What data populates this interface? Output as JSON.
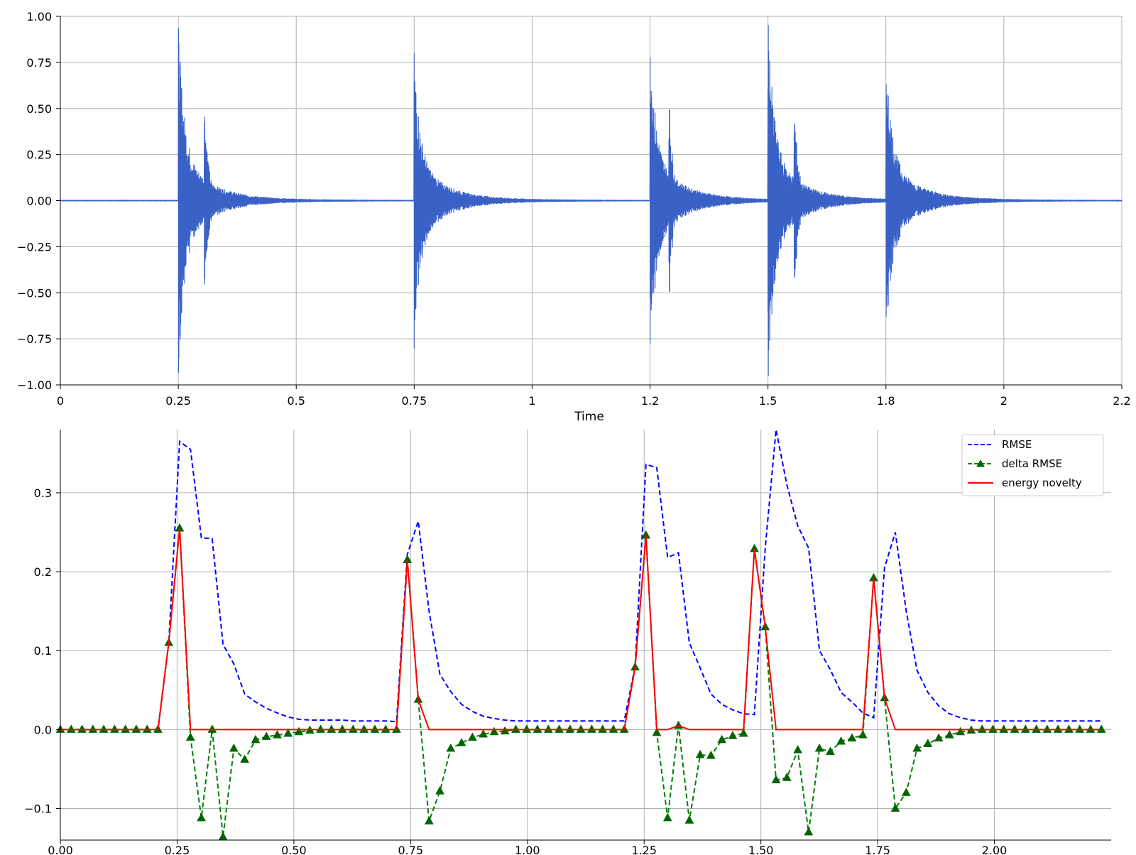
{
  "chart_data": [
    {
      "type": "line",
      "subtype": "waveform",
      "title": "",
      "xlabel": "Time",
      "ylabel": "",
      "xlim": [
        0,
        2.25
      ],
      "ylim": [
        -1.0,
        1.0
      ],
      "grid": true,
      "x_ticks": [
        0,
        0.25,
        0.5,
        0.75,
        1.0,
        1.25,
        1.5,
        1.75,
        2.0,
        2.25
      ],
      "x_tick_labels": [
        "0",
        "0.25",
        "0.5",
        "0.75",
        "1",
        "1.2",
        "1.5",
        "1.8",
        "2",
        "2.2"
      ],
      "y_ticks": [
        -1.0,
        -0.75,
        -0.5,
        -0.25,
        0.0,
        0.25,
        0.5,
        0.75,
        1.0
      ],
      "y_tick_labels": [
        "−1.00",
        "−0.75",
        "−0.50",
        "−0.25",
        "0.00",
        "0.25",
        "0.50",
        "0.75",
        "1.00"
      ],
      "color": "#3a62c6",
      "series": [
        {
          "onsets": [
            0.25,
            0.75,
            1.25,
            1.5,
            1.75
          ],
          "peak_amplitude": [
            0.97,
            0.81,
            0.9,
            1.0,
            0.82
          ],
          "second_burst": [
            {
              "t": 0.305,
              "amp": 0.58
            },
            {
              "t": 1.29,
              "amp": 0.6
            },
            {
              "t": 1.555,
              "amp": 0.6
            }
          ],
          "decay_tail_to": 2.25
        }
      ]
    },
    {
      "type": "line",
      "title": "",
      "xlabel": "",
      "ylabel": "",
      "xlim": [
        0,
        2.25
      ],
      "ylim": [
        -0.14,
        0.38
      ],
      "grid": true,
      "legend": "top-right",
      "x_ticks": [
        0,
        0.25,
        0.5,
        0.75,
        1.0,
        1.25,
        1.5,
        1.75,
        2.0
      ],
      "x_tick_labels": [
        "0.00",
        "0.25",
        "0.50",
        "0.75",
        "1.00",
        "1.25",
        "1.50",
        "1.75",
        "2.00"
      ],
      "y_ticks": [
        -0.1,
        0.0,
        0.1,
        0.2,
        0.3
      ],
      "y_tick_labels": [
        "−0.1",
        "0.0",
        "0.1",
        "0.2",
        "0.3"
      ],
      "series": [
        {
          "name": "RMSE",
          "color": "#0000ff",
          "style": "dashed",
          "x": [
            0,
            0.0232,
            0.0464,
            0.0697,
            0.0929,
            0.1161,
            0.1393,
            0.1625,
            0.1858,
            0.209,
            0.2322,
            0.2554,
            0.2786,
            0.3019,
            0.3251,
            0.3483,
            0.3715,
            0.3947,
            0.418,
            0.4412,
            0.4644,
            0.4876,
            0.5108,
            0.5341,
            0.5573,
            0.5805,
            0.6037,
            0.6269,
            0.6502,
            0.6734,
            0.6966,
            0.7198,
            0.743,
            0.7663,
            0.7895,
            0.8127,
            0.8359,
            0.8591,
            0.8824,
            0.9056,
            0.9288,
            0.952,
            0.9752,
            0.9985,
            1.0217,
            1.0449,
            1.0681,
            1.0913,
            1.1146,
            1.1378,
            1.161,
            1.1842,
            1.2074,
            1.2307,
            1.2539,
            1.2771,
            1.3003,
            1.3235,
            1.3468,
            1.37,
            1.3932,
            1.4164,
            1.4396,
            1.4629,
            1.4861,
            1.5093,
            1.5325,
            1.5557,
            1.579,
            1.6022,
            1.6254,
            1.6486,
            1.6718,
            1.6951,
            1.7183,
            1.7415,
            1.7647,
            1.7879,
            1.8112,
            1.8344,
            1.8576,
            1.8808,
            1.904,
            1.9273,
            1.9505,
            1.9737,
            1.9969,
            2.0201,
            2.0434,
            2.0666,
            2.0898,
            2.113,
            2.1362,
            2.1595,
            2.1827,
            2.2059,
            2.2291
          ],
          "values": [
            0,
            0,
            0,
            0,
            0,
            0,
            0,
            0,
            0,
            0,
            0.11,
            0.365,
            0.355,
            0.243,
            0.242,
            0.108,
            0.083,
            0.045,
            0.035,
            0.027,
            0.021,
            0.016,
            0.013,
            0.012,
            0.012,
            0.012,
            0.012,
            0.011,
            0.011,
            0.011,
            0.011,
            0.01,
            0.222,
            0.264,
            0.15,
            0.07,
            0.048,
            0.032,
            0.023,
            0.017,
            0.014,
            0.012,
            0.011,
            0.011,
            0.011,
            0.011,
            0.011,
            0.011,
            0.011,
            0.011,
            0.011,
            0.011,
            0.011,
            0.08,
            0.336,
            0.332,
            0.218,
            0.224,
            0.11,
            0.078,
            0.045,
            0.032,
            0.025,
            0.02,
            0.019,
            0.23,
            0.38,
            0.31,
            0.258,
            0.23,
            0.1,
            0.076,
            0.047,
            0.035,
            0.021,
            0.015,
            0.205,
            0.25,
            0.15,
            0.075,
            0.047,
            0.03,
            0.02,
            0.015,
            0.012,
            0.011,
            0.011,
            0.011,
            0.011,
            0.011,
            0.011,
            0.011,
            0.011,
            0.011,
            0.011,
            0.011,
            0.011
          ]
        },
        {
          "name": "delta RMSE",
          "color": "#008000",
          "style": "dashed",
          "marker": "triangle",
          "x": [
            0,
            0.0232,
            0.0464,
            0.0697,
            0.0929,
            0.1161,
            0.1393,
            0.1625,
            0.1858,
            0.209,
            0.2322,
            0.2554,
            0.2786,
            0.3019,
            0.3251,
            0.3483,
            0.3715,
            0.3947,
            0.418,
            0.4412,
            0.4644,
            0.4876,
            0.5108,
            0.5341,
            0.5573,
            0.5805,
            0.6037,
            0.6269,
            0.6502,
            0.6734,
            0.6966,
            0.7198,
            0.743,
            0.7663,
            0.7895,
            0.8127,
            0.8359,
            0.8591,
            0.8824,
            0.9056,
            0.9288,
            0.952,
            0.9752,
            0.9985,
            1.0217,
            1.0449,
            1.0681,
            1.0913,
            1.1146,
            1.1378,
            1.161,
            1.1842,
            1.2074,
            1.2307,
            1.2539,
            1.2771,
            1.3003,
            1.3235,
            1.3468,
            1.37,
            1.3932,
            1.4164,
            1.4396,
            1.4629,
            1.4861,
            1.5093,
            1.5325,
            1.5557,
            1.579,
            1.6022,
            1.6254,
            1.6486,
            1.6718,
            1.6951,
            1.7183,
            1.7415,
            1.7647,
            1.7879,
            1.8112,
            1.8344,
            1.8576,
            1.8808,
            1.904,
            1.9273,
            1.9505,
            1.9737,
            1.9969,
            2.0201,
            2.0434,
            2.0666,
            2.0898,
            2.113,
            2.1362,
            2.1595,
            2.1827,
            2.2059,
            2.2291
          ],
          "values": [
            0,
            0,
            0,
            0,
            0,
            0,
            0,
            0,
            0,
            0,
            0.11,
            0.255,
            -0.01,
            -0.112,
            0,
            -0.136,
            -0.024,
            -0.038,
            -0.013,
            -0.009,
            -0.007,
            -0.005,
            -0.003,
            -0.001,
            0,
            0,
            0,
            0,
            0,
            0,
            0,
            0,
            0.215,
            0.038,
            -0.116,
            -0.078,
            -0.024,
            -0.017,
            -0.01,
            -0.006,
            -0.003,
            -0.002,
            0,
            0,
            0,
            0,
            0,
            0,
            0,
            0,
            0,
            0,
            0,
            0.079,
            0.246,
            -0.004,
            -0.112,
            0.005,
            -0.115,
            -0.032,
            -0.033,
            -0.013,
            -0.008,
            -0.005,
            0.229,
            0.13,
            -0.064,
            -0.061,
            -0.026,
            -0.13,
            -0.024,
            -0.028,
            -0.015,
            -0.011,
            -0.007,
            0.192,
            0.04,
            -0.1,
            -0.08,
            -0.024,
            -0.018,
            -0.011,
            -0.007,
            -0.003,
            -0.001,
            0,
            0,
            0,
            0,
            0,
            0,
            0,
            0,
            0,
            0,
            0,
            0
          ]
        },
        {
          "name": "energy novelty",
          "color": "#ff0000",
          "style": "solid",
          "x": [
            0,
            0.0232,
            0.0464,
            0.0697,
            0.0929,
            0.1161,
            0.1393,
            0.1625,
            0.1858,
            0.209,
            0.2322,
            0.2554,
            0.2786,
            0.3019,
            0.3251,
            0.3483,
            0.3715,
            0.3947,
            0.418,
            0.4412,
            0.4644,
            0.4876,
            0.5108,
            0.5341,
            0.5573,
            0.5805,
            0.6037,
            0.6269,
            0.6502,
            0.6734,
            0.6966,
            0.7198,
            0.743,
            0.7663,
            0.7895,
            0.8127,
            0.8359,
            0.8591,
            0.8824,
            0.9056,
            0.9288,
            0.952,
            0.9752,
            0.9985,
            1.0217,
            1.0449,
            1.0681,
            1.0913,
            1.1146,
            1.1378,
            1.161,
            1.1842,
            1.2074,
            1.2307,
            1.2539,
            1.2771,
            1.3003,
            1.3235,
            1.3468,
            1.37,
            1.3932,
            1.4164,
            1.4396,
            1.4629,
            1.4861,
            1.5093,
            1.5325,
            1.5557,
            1.579,
            1.6022,
            1.6254,
            1.6486,
            1.6718,
            1.6951,
            1.7183,
            1.7415,
            1.7647,
            1.7879,
            1.8112,
            1.8344,
            1.8576,
            1.8808,
            1.904,
            1.9273,
            1.9505,
            1.9737,
            1.9969,
            2.0201,
            2.0434,
            2.0666,
            2.0898,
            2.113,
            2.1362,
            2.1595,
            2.1827,
            2.2059,
            2.2291
          ],
          "values": [
            0,
            0,
            0,
            0,
            0,
            0,
            0,
            0,
            0,
            0,
            0.11,
            0.255,
            0,
            0,
            0,
            0,
            0,
            0,
            0,
            0,
            0,
            0,
            0,
            0,
            0,
            0,
            0,
            0,
            0,
            0,
            0,
            0,
            0.215,
            0.038,
            0,
            0,
            0,
            0,
            0,
            0,
            0,
            0,
            0,
            0,
            0,
            0,
            0,
            0,
            0,
            0,
            0,
            0,
            0,
            0.079,
            0.246,
            0,
            0,
            0.005,
            0,
            0,
            0,
            0,
            0,
            0,
            0.229,
            0.13,
            0,
            0,
            0,
            0,
            0,
            0,
            0,
            0,
            0,
            0.192,
            0.04,
            0,
            0,
            0,
            0,
            0,
            0,
            0,
            0,
            0,
            0,
            0,
            0,
            0,
            0,
            0,
            0,
            0,
            0,
            0,
            0
          ]
        }
      ]
    }
  ]
}
